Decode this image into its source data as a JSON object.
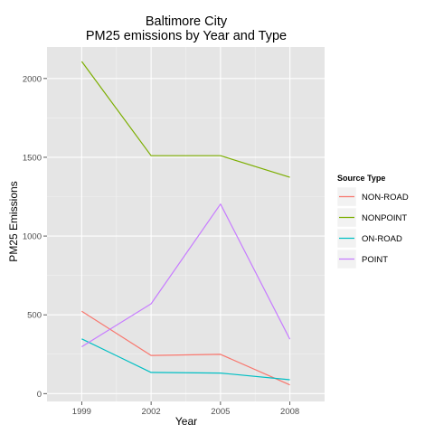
{
  "chart_data": {
    "type": "line",
    "title": "Baltimore City",
    "subtitle": "PM25 emissions by Year and Type",
    "xlabel": "Year",
    "ylabel": "PM25 Emissions",
    "x": [
      1999,
      2002,
      2005,
      2008
    ],
    "xlim": [
      1997.5,
      2009.5
    ],
    "ylim": [
      -50,
      2200
    ],
    "yticks": [
      0,
      500,
      1000,
      1500,
      2000
    ],
    "grid": true,
    "legend": {
      "title": "Source Type",
      "placement": "right"
    },
    "series": [
      {
        "name": "NON-ROAD",
        "color": "#F8766D",
        "values": [
          522,
          242,
          249,
          55
        ]
      },
      {
        "name": "NONPOINT",
        "color": "#7CAE00",
        "values": [
          2108,
          1510,
          1510,
          1373
        ]
      },
      {
        "name": "ON-ROAD",
        "color": "#00BFC4",
        "values": [
          347,
          134,
          130,
          88
        ]
      },
      {
        "name": "POINT",
        "color": "#C77CFF",
        "values": [
          297,
          570,
          1203,
          345
        ]
      }
    ]
  }
}
